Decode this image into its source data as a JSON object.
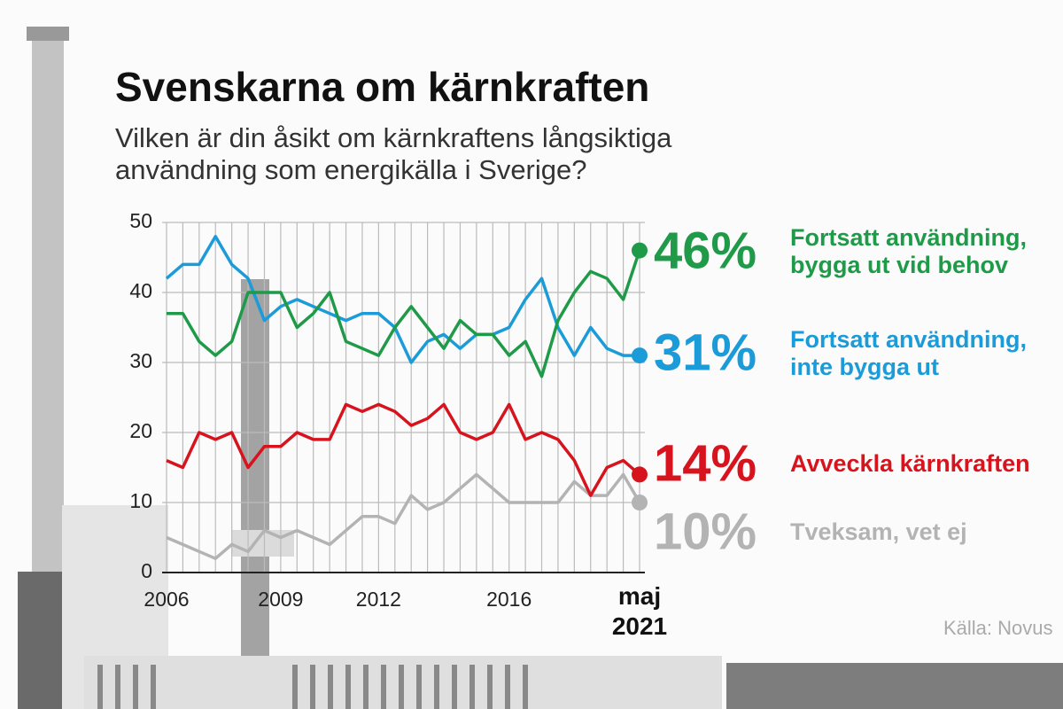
{
  "chart_data": {
    "type": "line",
    "title": "Svenskarna om kärnkraften",
    "subtitle": [
      "Vilken är din åsikt om kärnkraftens långsiktiga",
      "användning som energikälla i Sverige?"
    ],
    "source": "Källa: Novus",
    "categories": [
      "2006",
      null,
      null,
      null,
      null,
      null,
      null,
      "2009",
      null,
      null,
      null,
      null,
      null,
      "2012",
      null,
      null,
      null,
      null,
      null,
      null,
      null,
      "2016",
      null,
      null,
      null,
      null,
      null,
      null,
      null,
      "maj 2021"
    ],
    "ylim": [
      0,
      50
    ],
    "yticks": [
      0,
      10,
      20,
      30,
      40,
      50
    ],
    "grid": true,
    "series": [
      {
        "name": "Fortsatt användning, bygga ut vid behov",
        "color": "#1e9a48",
        "values": [
          37,
          37,
          33,
          31,
          33,
          40,
          40,
          40,
          35,
          37,
          40,
          33,
          32,
          31,
          35,
          38,
          35,
          32,
          36,
          34,
          34,
          31,
          33,
          28,
          36,
          40,
          43,
          42,
          39,
          46
        ],
        "value_labels": [
          null,
          null,
          null,
          null,
          null,
          null,
          null,
          null,
          null,
          null,
          null,
          null,
          null,
          null,
          null,
          null,
          null,
          null,
          null,
          null,
          null,
          null,
          null,
          null,
          null,
          null,
          null,
          null,
          null,
          "46%"
        ]
      },
      {
        "name": "Fortsatt användning, inte bygga ut",
        "color": "#1b9bd7",
        "values": [
          42,
          44,
          44,
          48,
          44,
          42,
          36,
          38,
          39,
          38,
          37,
          36,
          37,
          37,
          35,
          30,
          33,
          34,
          32,
          34,
          34,
          35,
          39,
          42,
          35,
          31,
          35,
          32,
          31,
          31
        ],
        "value_labels": [
          null,
          null,
          null,
          null,
          null,
          null,
          null,
          null,
          null,
          null,
          null,
          null,
          null,
          null,
          null,
          null,
          null,
          null,
          null,
          null,
          null,
          null,
          null,
          null,
          null,
          null,
          null,
          null,
          null,
          "31%"
        ]
      },
      {
        "name": "Avveckla kärnkraften",
        "color": "#d7141e",
        "values": [
          16,
          15,
          20,
          19,
          20,
          15,
          18,
          18,
          20,
          19,
          19,
          24,
          23,
          24,
          23,
          21,
          22,
          24,
          20,
          19,
          20,
          24,
          19,
          20,
          19,
          16,
          11,
          15,
          16,
          14
        ],
        "value_labels": [
          null,
          null,
          null,
          null,
          null,
          null,
          null,
          null,
          null,
          null,
          null,
          null,
          null,
          null,
          null,
          null,
          null,
          null,
          null,
          null,
          null,
          null,
          null,
          null,
          null,
          null,
          null,
          null,
          null,
          "14%"
        ]
      },
      {
        "name": "Tveksam, vet ej",
        "color": "#b3b3b3",
        "values": [
          5,
          4,
          3,
          2,
          4,
          3,
          6,
          5,
          6,
          5,
          4,
          6,
          8,
          8,
          7,
          11,
          9,
          10,
          12,
          14,
          12,
          10,
          10,
          10,
          10,
          13,
          11,
          11,
          14,
          10
        ],
        "value_labels": [
          null,
          null,
          null,
          null,
          null,
          null,
          null,
          null,
          null,
          null,
          null,
          null,
          null,
          null,
          null,
          null,
          null,
          null,
          null,
          null,
          null,
          null,
          null,
          null,
          null,
          null,
          null,
          null,
          null,
          "10%"
        ]
      }
    ]
  }
}
